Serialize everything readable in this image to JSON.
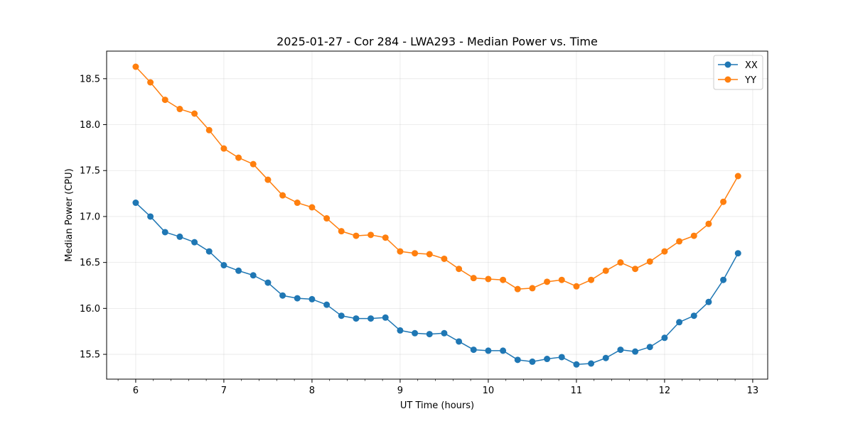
{
  "chart_data": {
    "type": "line",
    "title": "2025-01-27 - Cor 284 - LWA293 - Median Power vs. Time",
    "xlabel": "UT Time (hours)",
    "ylabel": "Median Power (CPU)",
    "xlim": [
      5.67,
      13.17
    ],
    "ylim": [
      15.23,
      18.8
    ],
    "xticks": [
      6,
      7,
      8,
      9,
      10,
      11,
      12,
      13
    ],
    "xtick_labels": [
      "6",
      "7",
      "8",
      "9",
      "10",
      "11",
      "12",
      "13"
    ],
    "yticks": [
      15.5,
      16.0,
      16.5,
      17.0,
      17.5,
      18.0,
      18.5
    ],
    "ytick_labels": [
      "15.5",
      "16.0",
      "16.5",
      "17.0",
      "17.5",
      "18.0",
      "18.5"
    ],
    "grid": true,
    "legend_position": "top-right",
    "x": [
      6.0,
      6.1667,
      6.3333,
      6.5,
      6.6667,
      6.8333,
      7.0,
      7.1667,
      7.3333,
      7.5,
      7.6667,
      7.8333,
      8.0,
      8.1667,
      8.3333,
      8.5,
      8.6667,
      8.8333,
      9.0,
      9.1667,
      9.3333,
      9.5,
      9.6667,
      9.8333,
      10.0,
      10.1667,
      10.3333,
      10.5,
      10.6667,
      10.8333,
      11.0,
      11.1667,
      11.3333,
      11.5,
      11.6667,
      11.8333,
      12.0,
      12.1667,
      12.3333,
      12.5,
      12.6667,
      12.8333
    ],
    "series": [
      {
        "name": "XX",
        "color": "#1f77b4",
        "values": [
          17.15,
          17.0,
          16.83,
          16.78,
          16.72,
          16.62,
          16.47,
          16.41,
          16.36,
          16.28,
          16.14,
          16.11,
          16.1,
          16.04,
          15.92,
          15.89,
          15.89,
          15.9,
          15.76,
          15.73,
          15.72,
          15.73,
          15.64,
          15.55,
          15.54,
          15.54,
          15.44,
          15.42,
          15.45,
          15.47,
          15.39,
          15.4,
          15.46,
          15.55,
          15.53,
          15.58,
          15.68,
          15.85,
          15.92,
          16.07,
          16.31,
          16.6
        ]
      },
      {
        "name": "YY",
        "color": "#ff7f0e",
        "values": [
          18.63,
          18.46,
          18.27,
          18.17,
          18.12,
          17.94,
          17.74,
          17.64,
          17.57,
          17.4,
          17.23,
          17.15,
          17.1,
          16.98,
          16.84,
          16.79,
          16.8,
          16.77,
          16.62,
          16.6,
          16.59,
          16.54,
          16.43,
          16.33,
          16.32,
          16.31,
          16.21,
          16.22,
          16.29,
          16.31,
          16.24,
          16.31,
          16.41,
          16.5,
          16.43,
          16.51,
          16.62,
          16.73,
          16.79,
          16.92,
          17.16,
          17.44
        ]
      }
    ]
  }
}
